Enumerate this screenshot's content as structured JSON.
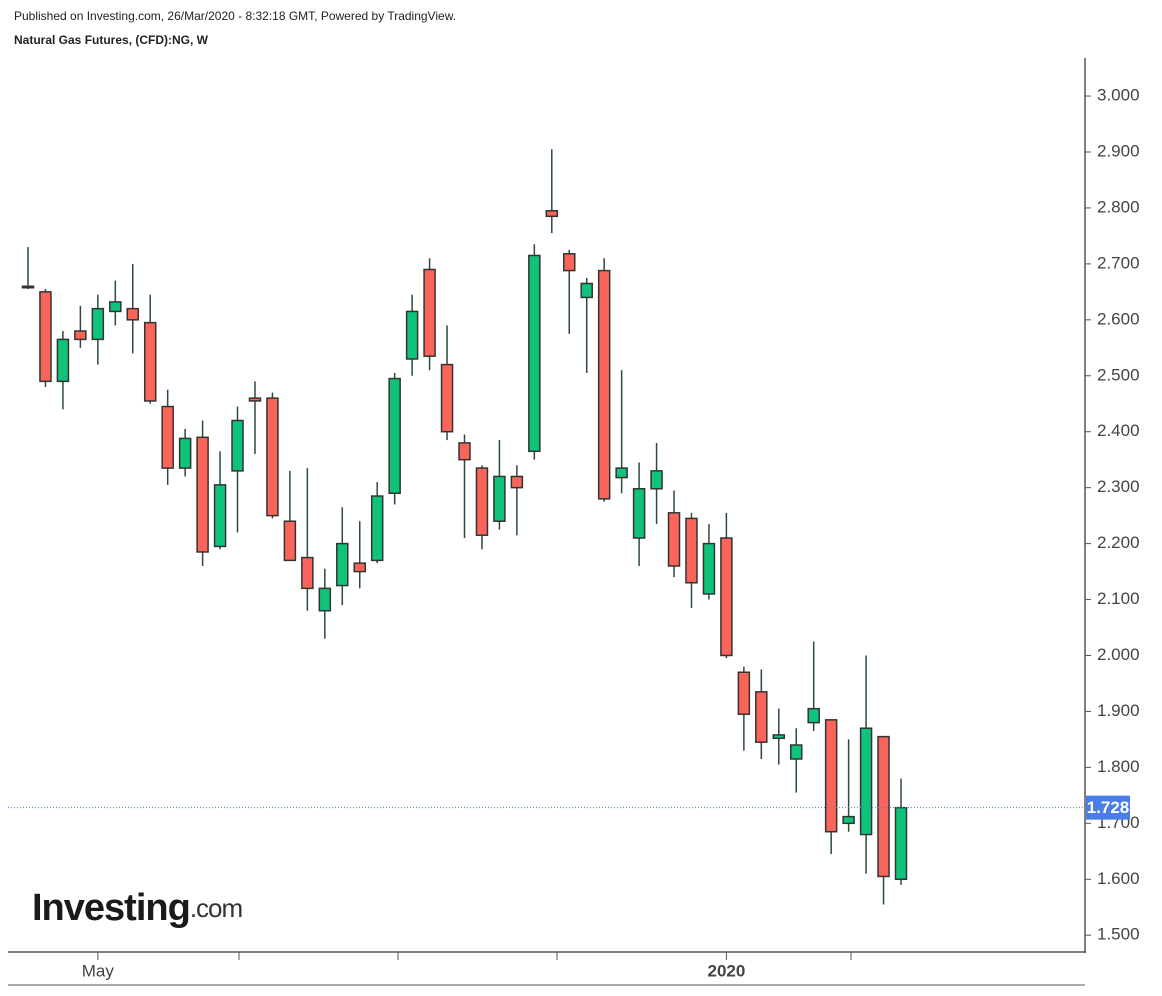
{
  "header": {
    "published": "Published on Investing.com, 26/Mar/2020 - 8:32:18 GMT, Powered by TradingView.",
    "symbol": "Natural Gas Futures, (CFD):NG, W"
  },
  "logo": {
    "name": "Investing",
    "suffix": ".com"
  },
  "chart_data": {
    "type": "candlestick",
    "categories": [
      null,
      null,
      null,
      null,
      "May",
      null,
      null,
      null,
      null,
      null,
      null,
      null,
      null,
      null,
      null,
      null,
      null,
      null,
      null,
      null,
      null,
      null,
      null,
      null,
      null,
      null,
      null,
      null,
      null,
      null,
      null,
      null,
      null,
      null,
      null,
      null,
      null,
      null,
      null,
      null,
      "2020",
      null,
      null,
      null,
      null,
      null,
      null,
      null,
      null,
      null,
      null
    ],
    "open": [
      2.66,
      2.65,
      2.49,
      2.58,
      2.565,
      2.615,
      2.62,
      2.595,
      2.445,
      2.335,
      2.39,
      2.195,
      2.33,
      2.46,
      2.46,
      2.24,
      2.175,
      2.08,
      2.125,
      2.165,
      2.17,
      2.29,
      2.53,
      2.69,
      2.52,
      2.38,
      2.335,
      2.24,
      2.32,
      2.365,
      2.795,
      2.718,
      2.64,
      2.688,
      2.318,
      2.21,
      2.298,
      2.255,
      2.245,
      2.11,
      2.21,
      1.97,
      1.935,
      1.852,
      1.815,
      1.88,
      1.885,
      1.7,
      1.68,
      1.855,
      1.6
    ],
    "high": [
      2.73,
      2.655,
      2.58,
      2.625,
      2.645,
      2.67,
      2.7,
      2.645,
      2.475,
      2.405,
      2.42,
      2.365,
      2.445,
      2.49,
      2.47,
      2.33,
      2.335,
      2.155,
      2.265,
      2.24,
      2.31,
      2.505,
      2.645,
      2.71,
      2.59,
      2.395,
      2.34,
      2.385,
      2.34,
      2.735,
      2.905,
      2.725,
      2.675,
      2.71,
      2.51,
      2.345,
      2.38,
      2.295,
      2.255,
      2.235,
      2.255,
      1.98,
      1.975,
      1.905,
      1.87,
      2.025,
      1.885,
      1.85,
      2.0,
      1.855,
      1.78
    ],
    "low": [
      2.655,
      2.48,
      2.44,
      2.55,
      2.52,
      2.59,
      2.54,
      2.45,
      2.305,
      2.32,
      2.16,
      2.19,
      2.22,
      2.36,
      2.245,
      2.17,
      2.08,
      2.03,
      2.09,
      2.12,
      2.165,
      2.27,
      2.5,
      2.51,
      2.385,
      2.21,
      2.19,
      2.225,
      2.215,
      2.35,
      2.755,
      2.575,
      2.505,
      2.275,
      2.29,
      2.16,
      2.235,
      2.14,
      2.085,
      2.1,
      1.995,
      1.83,
      1.815,
      1.805,
      1.755,
      1.865,
      1.645,
      1.685,
      1.61,
      1.555,
      1.59
    ],
    "close": [
      2.66,
      2.49,
      2.565,
      2.565,
      2.62,
      2.632,
      2.6,
      2.455,
      2.335,
      2.388,
      2.185,
      2.305,
      2.42,
      2.455,
      2.25,
      2.17,
      2.12,
      2.12,
      2.2,
      2.15,
      2.285,
      2.495,
      2.615,
      2.535,
      2.4,
      2.35,
      2.215,
      2.32,
      2.3,
      2.715,
      2.785,
      2.688,
      2.665,
      2.28,
      2.335,
      2.298,
      2.33,
      2.16,
      2.13,
      2.2,
      2.0,
      1.895,
      1.845,
      1.858,
      1.84,
      1.905,
      1.685,
      1.712,
      1.87,
      1.605,
      1.728
    ],
    "up_color": "#0fc47a",
    "down_color": "#f9655a",
    "last_price": {
      "value": 1.728,
      "label": "1.728"
    },
    "ylim": [
      1.47,
      3.068
    ],
    "yticks": [
      {
        "value": 1.5,
        "label": "1.500"
      },
      {
        "value": 1.6,
        "label": "1.600"
      },
      {
        "value": 1.7,
        "label": "1.700"
      },
      {
        "value": 1.8,
        "label": "1.800"
      },
      {
        "value": 1.9,
        "label": "1.900"
      },
      {
        "value": 2.0,
        "label": "2.000"
      },
      {
        "value": 2.1,
        "label": "2.100"
      },
      {
        "value": 2.2,
        "label": "2.200"
      },
      {
        "value": 2.3,
        "label": "2.300"
      },
      {
        "value": 2.4,
        "label": "2.400"
      },
      {
        "value": 2.5,
        "label": "2.500"
      },
      {
        "value": 2.6,
        "label": "2.600"
      },
      {
        "value": 2.7,
        "label": "2.700"
      },
      {
        "value": 2.8,
        "label": "2.800"
      },
      {
        "value": 2.9,
        "label": "2.900"
      },
      {
        "value": 3.0,
        "label": "3.000"
      }
    ]
  }
}
